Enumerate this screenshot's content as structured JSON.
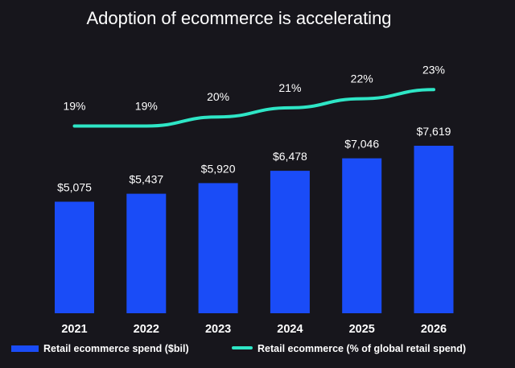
{
  "colors": {
    "background": "#17161c",
    "bar": "#1a4cf7",
    "line": "#2ee6c6",
    "text": "#ffffff"
  },
  "chart_data": {
    "type": "bar",
    "title": "Adoption of ecommerce is accelerating",
    "categories": [
      "2021",
      "2022",
      "2023",
      "2024",
      "2025",
      "2026"
    ],
    "series": [
      {
        "name": "Retail ecommerce spend ($bil)",
        "type": "bar",
        "values": [
          5075,
          5437,
          5920,
          6478,
          7046,
          7619
        ],
        "labels": [
          "$5,075",
          "$5,437",
          "$5,920",
          "$6,478",
          "$7,046",
          "$7,619"
        ]
      },
      {
        "name": "Retail ecommerce (% of global retail spend)",
        "type": "line",
        "values": [
          19,
          19,
          20,
          21,
          22,
          23
        ],
        "labels": [
          "19%",
          "19%",
          "20%",
          "21%",
          "22%",
          "23%"
        ]
      }
    ],
    "xlabel": "",
    "ylabel": "",
    "legend_position": "bottom",
    "grid": false
  }
}
